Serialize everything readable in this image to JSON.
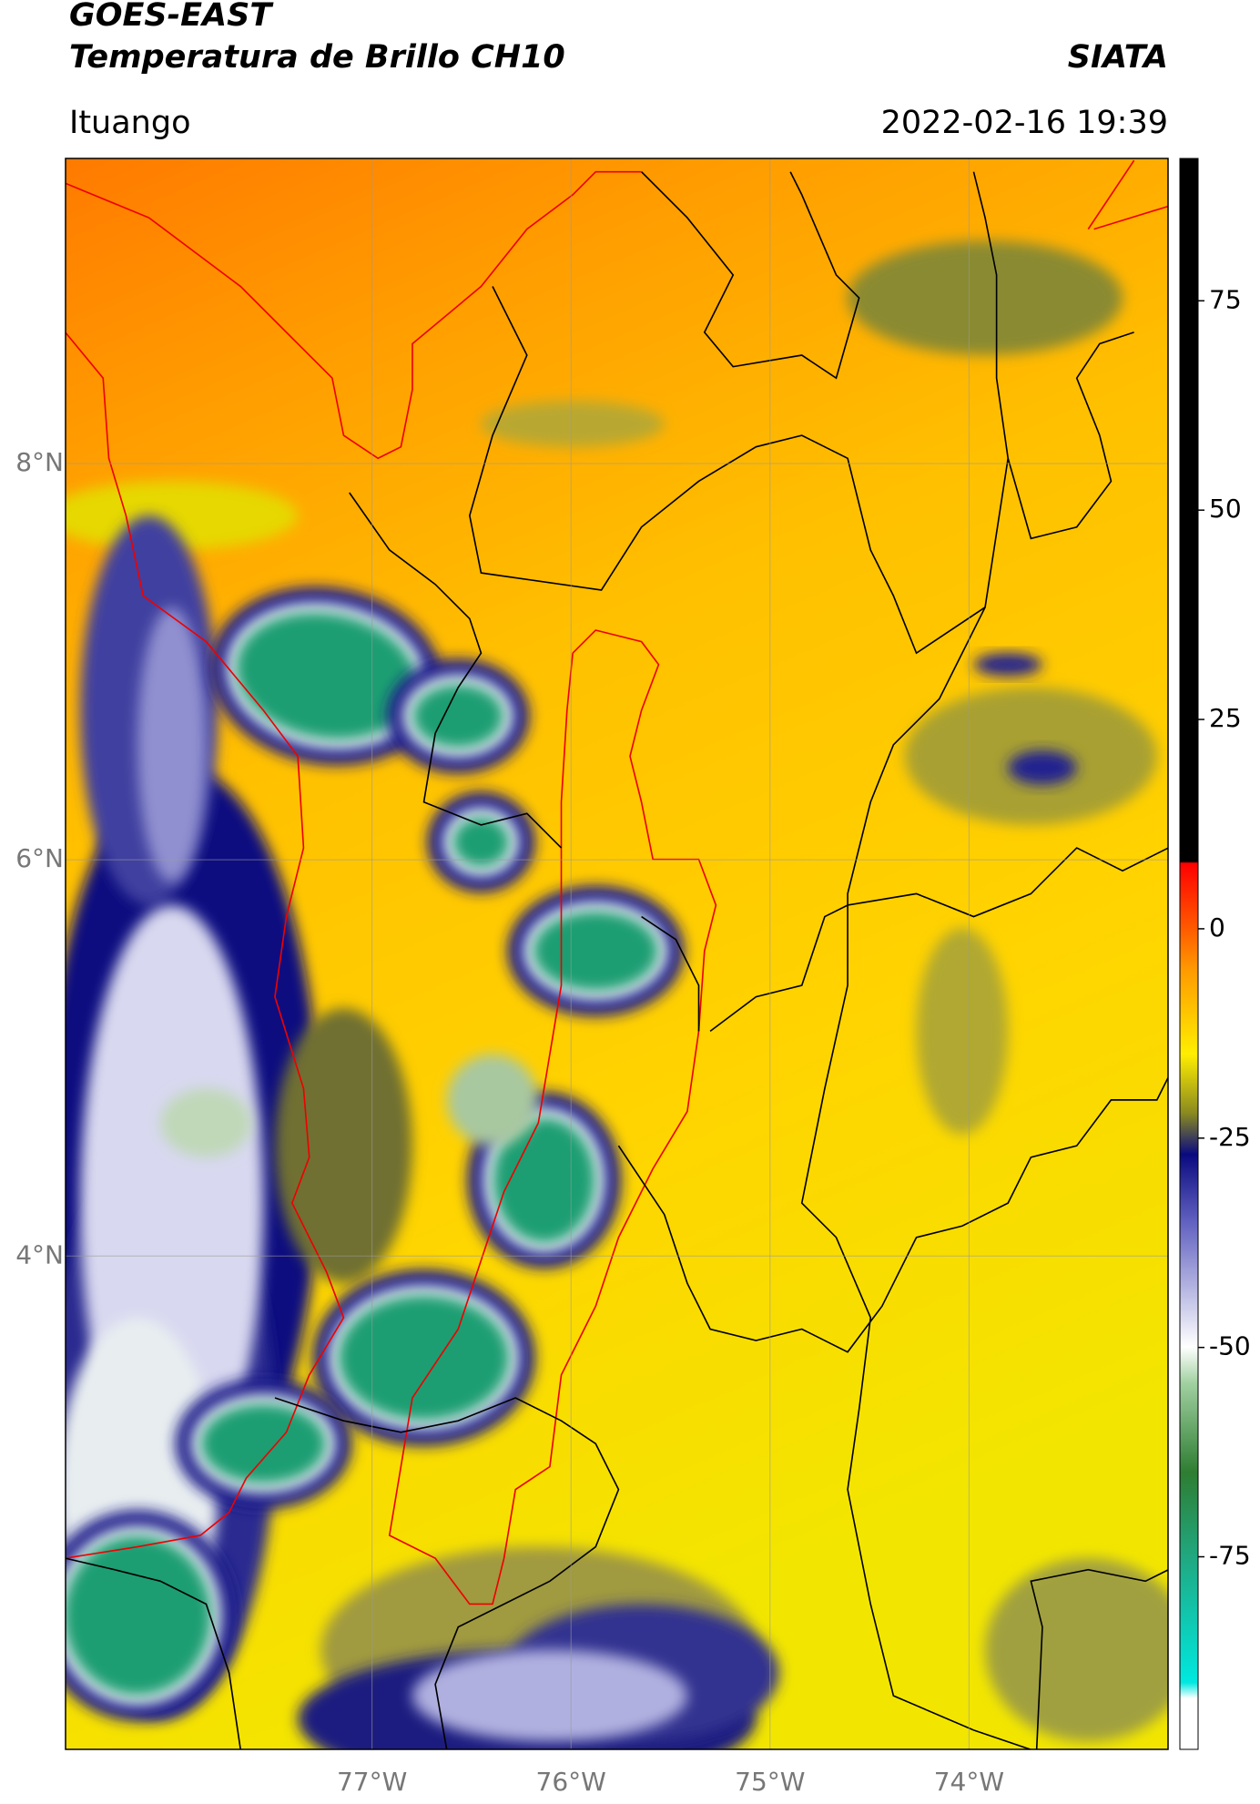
{
  "header": {
    "title": "GOES-EAST",
    "subtitle": "Temperatura de Brillo CH10",
    "agency": "SIATA",
    "region": "Ituango",
    "datetime": "2022-02-16 19:39"
  },
  "map": {
    "xlim": [
      -78.54,
      -73.0
    ],
    "ylim": [
      1.51,
      9.54
    ],
    "xticks": [
      {
        "value": -77,
        "label": "77°W"
      },
      {
        "value": -76,
        "label": "76°W"
      },
      {
        "value": -75,
        "label": "75°W"
      },
      {
        "value": -74,
        "label": "74°W"
      }
    ],
    "yticks": [
      {
        "value": 4,
        "label": "4°N"
      },
      {
        "value": 6,
        "label": "6°N"
      },
      {
        "value": 8,
        "label": "8°N"
      }
    ],
    "grid": true
  },
  "colorbar": {
    "lim": [
      -98,
      92
    ],
    "ticks": [
      -75,
      -50,
      -25,
      0,
      25,
      50,
      75
    ]
  }
}
